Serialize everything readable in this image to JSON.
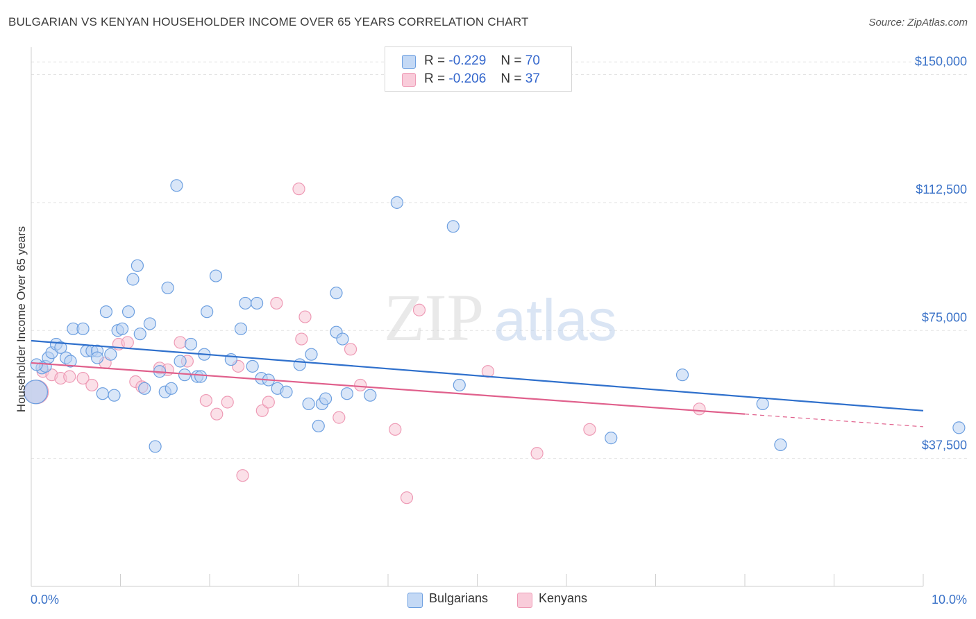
{
  "title": "BULGARIAN VS KENYAN HOUSEHOLDER INCOME OVER 65 YEARS CORRELATION CHART",
  "source": "Source: ZipAtlas.com",
  "watermark": {
    "zip": "ZIP",
    "atlas": "atlas"
  },
  "legend": {
    "rows": [
      {
        "r_label": "R =",
        "r_value": "-0.229",
        "n_label": "N =",
        "n_value": "70",
        "color": "#9ec0ee"
      },
      {
        "r_label": "R =",
        "r_value": "-0.206",
        "n_label": "N =",
        "n_value": "37",
        "color": "#f6b8cb"
      }
    ]
  },
  "bottom_legend": {
    "bulgarians": "Bulgarians",
    "kenyans": "Kenyans"
  },
  "chart_data": {
    "type": "scatter",
    "title": "BULGARIAN VS KENYAN HOUSEHOLDER INCOME OVER 65 YEARS CORRELATION CHART",
    "xlabel": "",
    "ylabel": "Householder Income Over 65 years",
    "xlim": [
      0,
      10
    ],
    "ylim": [
      0,
      156000
    ],
    "x_tick_labels": [
      "0.0%",
      "10.0%"
    ],
    "y_ticks": [
      37500,
      75000,
      112500,
      150000
    ],
    "y_tick_labels": [
      "$37,500",
      "$75,000",
      "$112,500",
      "$150,000"
    ],
    "grid": "horizontal dashed",
    "legend_position": "top-center",
    "series": [
      {
        "name": "Bulgarians",
        "color": "#6c9fe0",
        "fill": "#b9d2f3",
        "trend": {
          "x": [
            0,
            10
          ],
          "y": [
            72000,
            51500
          ],
          "color": "#2f70cc"
        },
        "points": [
          [
            0.05,
            57000
          ],
          [
            0.12,
            64000
          ],
          [
            0.16,
            64500
          ],
          [
            0.19,
            67000
          ],
          [
            0.23,
            68500
          ],
          [
            0.28,
            71000
          ],
          [
            0.33,
            70000
          ],
          [
            0.39,
            67000
          ],
          [
            0.44,
            66000
          ],
          [
            0.47,
            75500
          ],
          [
            0.58,
            75500
          ],
          [
            0.62,
            69000
          ],
          [
            0.68,
            69000
          ],
          [
            0.74,
            69000
          ],
          [
            0.74,
            67000
          ],
          [
            0.8,
            56500
          ],
          [
            0.84,
            80500
          ],
          [
            0.89,
            68000
          ],
          [
            0.93,
            56000
          ],
          [
            0.97,
            75000
          ],
          [
            1.02,
            75500
          ],
          [
            1.09,
            80500
          ],
          [
            1.14,
            90000
          ],
          [
            1.19,
            94000
          ],
          [
            1.22,
            74000
          ],
          [
            1.27,
            58000
          ],
          [
            1.33,
            77000
          ],
          [
            1.39,
            41000
          ],
          [
            1.44,
            63000
          ],
          [
            1.5,
            57000
          ],
          [
            1.53,
            87500
          ],
          [
            1.57,
            58000
          ],
          [
            1.63,
            117500
          ],
          [
            1.67,
            66000
          ],
          [
            1.72,
            62000
          ],
          [
            1.79,
            71000
          ],
          [
            1.86,
            61500
          ],
          [
            1.9,
            61500
          ],
          [
            1.94,
            68000
          ],
          [
            1.97,
            80500
          ],
          [
            2.07,
            91000
          ],
          [
            2.24,
            66500
          ],
          [
            2.35,
            75500
          ],
          [
            2.4,
            83000
          ],
          [
            2.48,
            64500
          ],
          [
            2.53,
            83000
          ],
          [
            2.58,
            61000
          ],
          [
            2.66,
            60500
          ],
          [
            2.76,
            58000
          ],
          [
            2.86,
            57000
          ],
          [
            3.01,
            65000
          ],
          [
            3.11,
            53500
          ],
          [
            3.14,
            68000
          ],
          [
            3.22,
            47000
          ],
          [
            3.26,
            53500
          ],
          [
            3.3,
            55000
          ],
          [
            3.42,
            86000
          ],
          [
            3.42,
            74500
          ],
          [
            3.49,
            72500
          ],
          [
            3.54,
            56500
          ],
          [
            3.8,
            56000
          ],
          [
            4.1,
            112500
          ],
          [
            4.8,
            59000
          ],
          [
            4.73,
            105500
          ],
          [
            6.5,
            43500
          ],
          [
            7.3,
            62000
          ],
          [
            8.2,
            53500
          ],
          [
            8.4,
            41500
          ],
          [
            10.4,
            46500
          ],
          [
            0.06,
            65000
          ]
        ]
      },
      {
        "name": "Kenyans",
        "color": "#ee9ab5",
        "fill": "#f7c7d6",
        "trend": {
          "x": [
            0,
            8
          ],
          "y": [
            65500,
            50500
          ],
          "color": "#e0608c"
        },
        "trend_extension": {
          "x": [
            8,
            10
          ],
          "y": [
            50500,
            46800
          ]
        },
        "points": [
          [
            0.06,
            57000
          ],
          [
            0.13,
            63000
          ],
          [
            0.23,
            62000
          ],
          [
            0.33,
            61000
          ],
          [
            0.43,
            61500
          ],
          [
            0.58,
            61000
          ],
          [
            0.68,
            59000
          ],
          [
            0.83,
            65500
          ],
          [
            0.98,
            71000
          ],
          [
            1.08,
            71500
          ],
          [
            1.17,
            60000
          ],
          [
            1.24,
            58500
          ],
          [
            1.44,
            64000
          ],
          [
            1.53,
            63500
          ],
          [
            1.67,
            71500
          ],
          [
            1.75,
            66000
          ],
          [
            1.96,
            54500
          ],
          [
            2.08,
            50500
          ],
          [
            2.2,
            54000
          ],
          [
            2.32,
            64500
          ],
          [
            2.37,
            32500
          ],
          [
            2.59,
            51500
          ],
          [
            2.66,
            54000
          ],
          [
            2.75,
            83000
          ],
          [
            3.0,
            116500
          ],
          [
            3.03,
            72500
          ],
          [
            3.07,
            79000
          ],
          [
            3.45,
            49500
          ],
          [
            3.58,
            69500
          ],
          [
            3.69,
            59000
          ],
          [
            4.08,
            46000
          ],
          [
            4.21,
            26000
          ],
          [
            4.35,
            81000
          ],
          [
            5.12,
            63000
          ],
          [
            5.67,
            39000
          ],
          [
            6.26,
            46000
          ],
          [
            7.49,
            52000
          ]
        ]
      }
    ]
  }
}
